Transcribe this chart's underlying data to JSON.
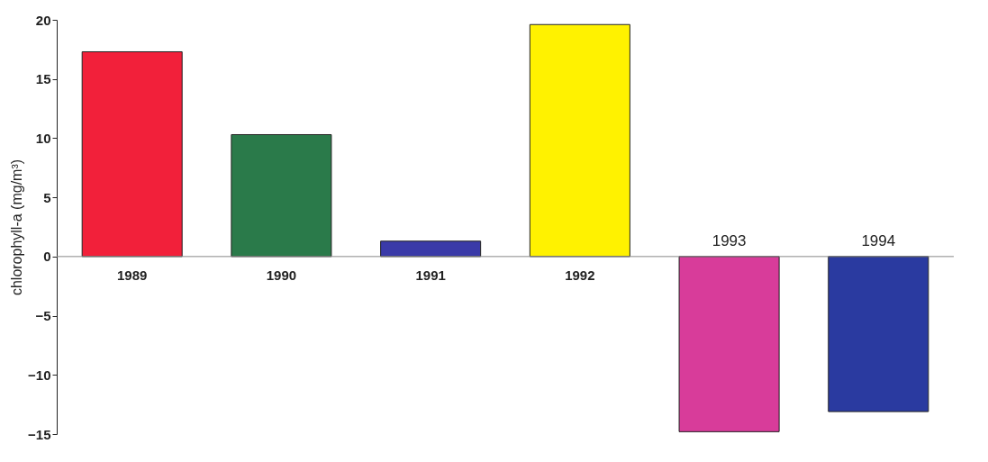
{
  "chart_data": {
    "type": "bar",
    "ylabel": "chlorophyll-a (mg/m³)",
    "categories": [
      "1989",
      "1990",
      "1991",
      "1992",
      "1993",
      "1994"
    ],
    "values": [
      17.3,
      10.3,
      1.3,
      19.6,
      -14.8,
      -13.1
    ],
    "colors": [
      "#f2203a",
      "#2a7a4a",
      "#3a3aa8",
      "#fff200",
      "#d83c9a",
      "#2a3aa0"
    ],
    "ylim": [
      -15,
      20
    ],
    "yticks": [
      -15,
      -10,
      -5,
      0,
      5,
      10,
      15,
      20
    ],
    "grid": false,
    "legend": false
  }
}
